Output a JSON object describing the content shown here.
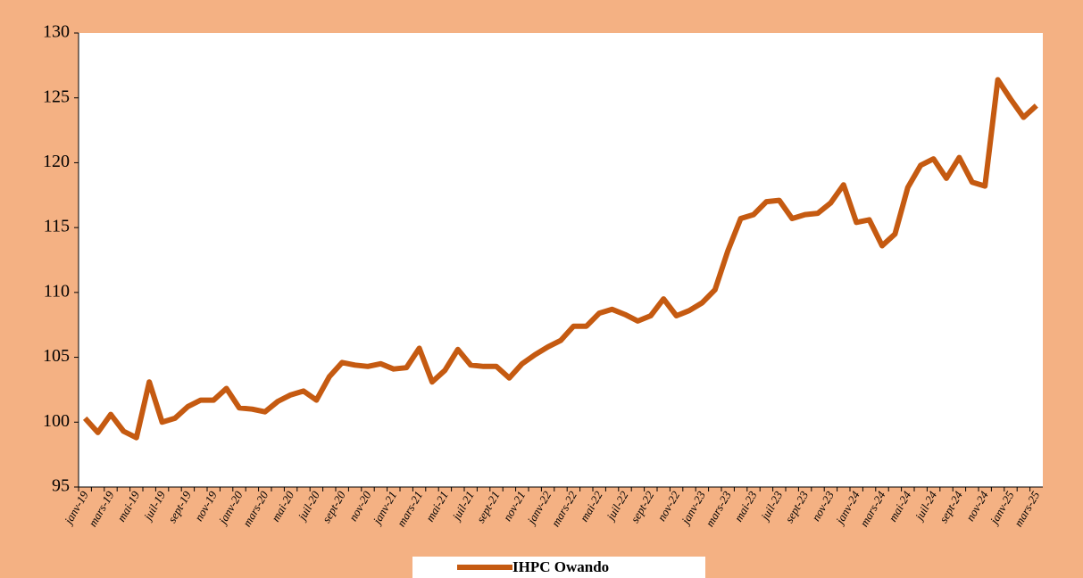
{
  "chart_data": {
    "type": "line",
    "categories": [
      "janv-19",
      null,
      "mars-19",
      null,
      "mai-19",
      null,
      "juil-19",
      null,
      "sept-19",
      null,
      "nov-19",
      null,
      "janv-20",
      null,
      "mars-20",
      null,
      "mai-20",
      null,
      "juil-20",
      null,
      "sept-20",
      null,
      "nov-20",
      null,
      "janv-21",
      null,
      "mars-21",
      null,
      "mai-21",
      null,
      "juil-21",
      null,
      "sept-21",
      null,
      "nov-21",
      null,
      "janv-22",
      null,
      "mars-22",
      null,
      "mai-22",
      null,
      "juil-22",
      null,
      "sept-22",
      null,
      "nov-22",
      null,
      "janv-23",
      null,
      "mars-23",
      null,
      "mai-23",
      null,
      "juil-23",
      null,
      "sept-23",
      null,
      "nov-23",
      null,
      "janv-24",
      null,
      "mars-24",
      null,
      "mai-24",
      null,
      "juil-24",
      null,
      "sept-24",
      null,
      "nov-24",
      null,
      "janv-25",
      null,
      "mars-25"
    ],
    "series": [
      {
        "name": "IHPC Owando",
        "color": "#c55a11",
        "values": [
          100.3,
          99.2,
          100.6,
          99.3,
          98.8,
          103.1,
          100.0,
          100.3,
          101.2,
          101.7,
          101.7,
          102.6,
          101.1,
          101.0,
          100.8,
          101.6,
          102.1,
          102.4,
          101.7,
          103.5,
          104.6,
          104.4,
          104.3,
          104.5,
          104.1,
          104.2,
          105.7,
          103.1,
          104.0,
          105.6,
          104.4,
          104.3,
          104.3,
          103.4,
          104.5,
          105.2,
          105.8,
          106.3,
          107.4,
          107.4,
          108.4,
          108.7,
          108.3,
          107.8,
          108.2,
          109.5,
          108.2,
          108.6,
          109.2,
          110.2,
          113.2,
          115.7,
          116.0,
          117.0,
          117.1,
          115.7,
          116.0,
          116.1,
          116.9,
          118.3,
          115.4,
          115.6,
          113.6,
          114.5,
          118.1,
          119.8,
          120.3,
          118.8,
          120.4,
          118.5,
          118.2,
          126.4,
          124.9,
          123.5,
          124.4
        ]
      }
    ],
    "ylim": [
      95,
      130
    ],
    "yticks": [
      95,
      100,
      105,
      110,
      115,
      120,
      125,
      130
    ],
    "legend": "bottom"
  }
}
